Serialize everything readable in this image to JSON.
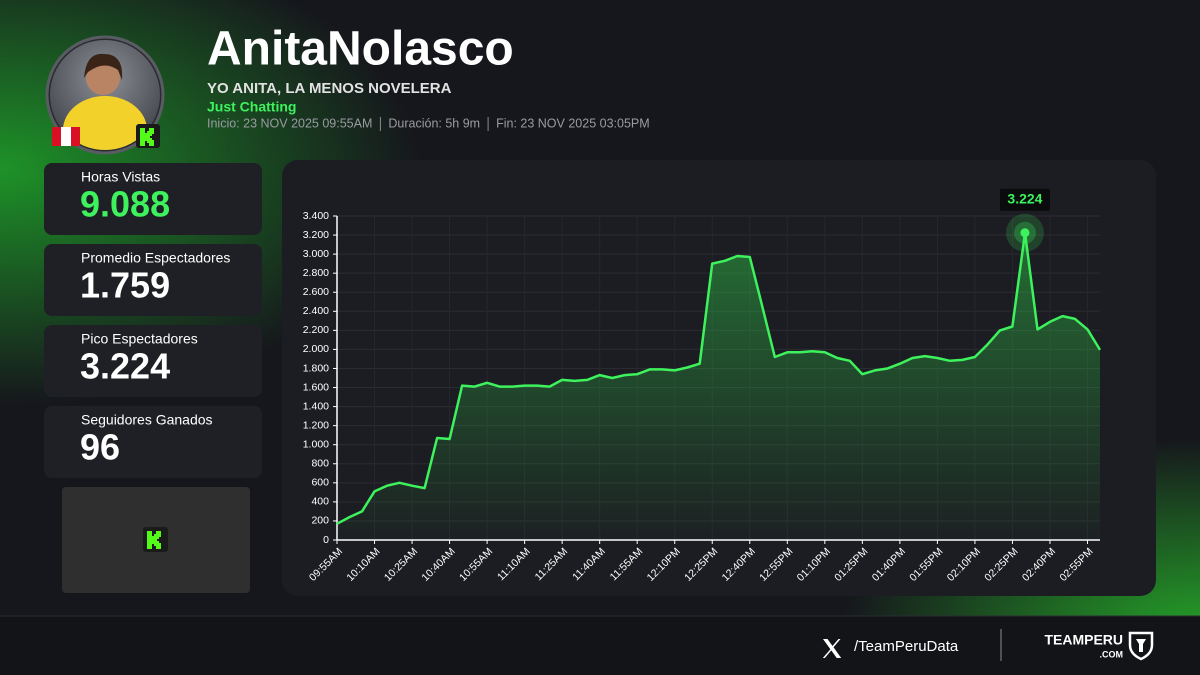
{
  "header": {
    "name": "AnitaNolasco",
    "stream_title": "YO ANITA, LA MENOS NOVELERA",
    "category": "Just Chatting",
    "start": "Inicio: 23 NOV 2025 09:55AM",
    "duration": "Duración: 5h 9m",
    "end": "Fin: 23 NOV 2025 03:05PM"
  },
  "stats": [
    {
      "label": "Horas Vistas",
      "value": "9.088"
    },
    {
      "label": "Promedio Espectadores",
      "value": "1.759"
    },
    {
      "label": "Pico Espectadores",
      "value": "3.224"
    },
    {
      "label": "Seguidores Ganados",
      "value": "96"
    }
  ],
  "footer": {
    "handle": "/TeamPeruData",
    "brand": "TEAMPERU",
    "brand_suffix": ".COM"
  },
  "chart_data": {
    "type": "line",
    "color": "#3df25c",
    "grid": true,
    "categories": [
      "09:55AM",
      null,
      null,
      "10:10AM",
      null,
      null,
      "10:25AM",
      null,
      null,
      "10:40AM",
      null,
      null,
      "10:55AM",
      null,
      null,
      "11:10AM",
      null,
      null,
      "11:25AM",
      null,
      null,
      "11:40AM",
      null,
      null,
      "11:55AM",
      null,
      null,
      "12:10PM",
      null,
      null,
      "12:25PM",
      null,
      null,
      "12:40PM",
      null,
      null,
      "12:55PM",
      null,
      null,
      "01:10PM",
      null,
      null,
      "01:25PM",
      null,
      null,
      "01:40PM",
      null,
      null,
      "01:55PM",
      null,
      null,
      "02:10PM",
      null,
      null,
      "02:25PM",
      null,
      null,
      "02:40PM",
      null,
      null,
      "02:55PM",
      null
    ],
    "values": [
      170,
      240,
      300,
      510,
      570,
      600,
      570,
      545,
      1070,
      1060,
      1620,
      1610,
      1650,
      1610,
      1610,
      1620,
      1620,
      1610,
      1680,
      1670,
      1680,
      1730,
      1700,
      1730,
      1740,
      1790,
      1790,
      1780,
      1810,
      1850,
      2900,
      2930,
      2980,
      2970,
      2450,
      1920,
      1970,
      1970,
      1980,
      1970,
      1910,
      1880,
      1740,
      1780,
      1800,
      1850,
      1910,
      1930,
      1910,
      1880,
      1890,
      1920,
      2050,
      2200,
      2240,
      3224,
      2210,
      2290,
      2350,
      2320,
      2210,
      1995
    ],
    "value_labels": [
      null,
      null,
      null,
      null,
      null,
      null,
      null,
      null,
      null,
      null,
      null,
      null,
      null,
      null,
      null,
      null,
      null,
      null,
      null,
      null,
      null,
      null,
      null,
      null,
      null,
      null,
      null,
      null,
      null,
      null,
      null,
      null,
      null,
      null,
      null,
      null,
      null,
      null,
      null,
      null,
      null,
      null,
      null,
      null,
      null,
      null,
      null,
      null,
      null,
      null,
      null,
      null,
      null,
      null,
      null,
      "3.224",
      null,
      null,
      null,
      null,
      null,
      null
    ],
    "ylim": [
      0,
      3400
    ],
    "yticks": [
      0,
      200,
      400,
      600,
      800,
      {
        "value": 1000,
        "label": "1.000"
      },
      {
        "value": 1200,
        "label": "1.200"
      },
      {
        "value": 1400,
        "label": "1.400"
      },
      {
        "value": 1600,
        "label": "1.600"
      },
      {
        "value": 1800,
        "label": "1.800"
      },
      {
        "value": 2000,
        "label": "2.000"
      },
      {
        "value": 2200,
        "label": "2.200"
      },
      {
        "value": 2400,
        "label": "2.400"
      },
      {
        "value": 2600,
        "label": "2.600"
      },
      {
        "value": 2800,
        "label": "2.800"
      },
      {
        "value": 3000,
        "label": "3.000"
      },
      {
        "value": 3200,
        "label": "3.200"
      },
      {
        "value": 3400,
        "label": "3.400"
      }
    ]
  }
}
